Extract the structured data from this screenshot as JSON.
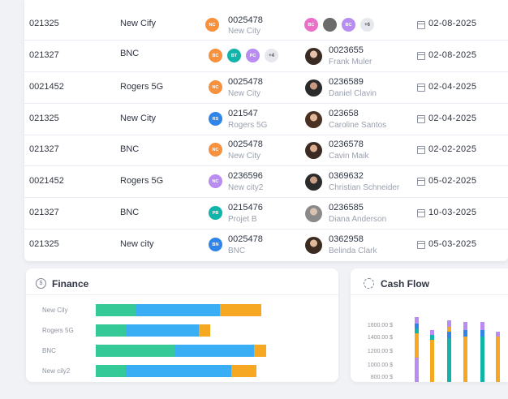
{
  "table": {
    "rows": [
      {
        "id": "021325",
        "company": "New Cify",
        "tx_id": "0025478",
        "tx_sub": "New City",
        "user_id": "",
        "user_name": "",
        "date": "02-08-2025"
      },
      {
        "id": "021327",
        "company": "BNC",
        "tx_id": "",
        "tx_sub": "",
        "user_id": "0023655",
        "user_name": "Frank Muler",
        "date": "02-08-2025"
      },
      {
        "id": "0021452",
        "company": "Rogers 5G",
        "tx_id": "0025478",
        "tx_sub": "New City",
        "user_id": "0236589",
        "user_name": "Daniel Clavin",
        "date": "02-04-2025"
      },
      {
        "id": "021325",
        "company": "New City",
        "tx_id": "021547",
        "tx_sub": "Rogers 5G",
        "user_id": "023658",
        "user_name": "Caroline Santos",
        "date": "02-04-2025"
      },
      {
        "id": "021327",
        "company": "BNC",
        "tx_id": "0025478",
        "tx_sub": "New City",
        "user_id": "0236578",
        "user_name": "Cavin Maik",
        "date": "02-02-2025"
      },
      {
        "id": "0021452",
        "company": "Rogers 5G",
        "tx_id": "0236596",
        "tx_sub": "New city2",
        "user_id": "0369632",
        "user_name": "Christian Schneider",
        "date": "05-02-2025"
      },
      {
        "id": "021327",
        "company": "BNC",
        "tx_id": "0215476",
        "tx_sub": "Projet B",
        "user_id": "0236585",
        "user_name": "Diana Anderson",
        "date": "10-03-2025"
      },
      {
        "id": "021325",
        "company": "New city",
        "tx_id": "0025478",
        "tx_sub": "BNC",
        "user_id": "0362958",
        "user_name": "Belinda Clark",
        "date": "05-03-2025"
      }
    ],
    "chips": {
      "r0_chip": "NC",
      "r2_chip": "NC",
      "r3_chip": "RS",
      "r4_chip": "NC",
      "r5_chip": "NC",
      "r6_chip": "PB",
      "r7_chip": "BN",
      "r1_group": [
        "BC",
        "BT",
        "PC"
      ],
      "r1_more": "+4",
      "r0_users": [
        "BC",
        "",
        "BC"
      ],
      "r0_more": "+6"
    }
  },
  "colors": {
    "orange": "#f7913d",
    "blue": "#2f86e8",
    "teal": "#12b3a8",
    "purple": "#b88cf0",
    "pink": "#e96fc9",
    "green": "#36c694",
    "finance_green": "#34c997",
    "finance_blue": "#3aaef5",
    "finance_orange": "#f7a823"
  },
  "finance": {
    "title": "Finance",
    "categories": [
      "New Cily",
      "Rogers 5G",
      "BNC",
      "New cily2"
    ],
    "series": [
      {
        "name": "green",
        "values": [
          50,
          38,
          98,
          37
        ]
      },
      {
        "name": "blue",
        "values": [
          103,
          89,
          97,
          130
        ]
      },
      {
        "name": "orange",
        "values": [
          51,
          14,
          15,
          31
        ]
      }
    ]
  },
  "cashflow": {
    "title": "Cash Flow",
    "yticks": [
      "1600.00 $",
      "1400.00 $",
      "1200.00 $",
      "1000.00 $",
      "800.00 $"
    ]
  }
}
